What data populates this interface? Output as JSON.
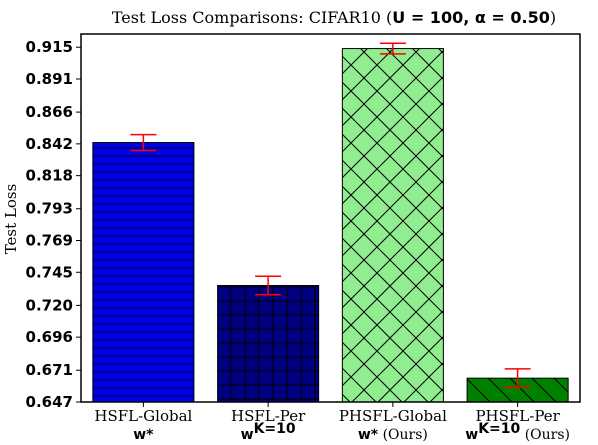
{
  "chart_data": {
    "type": "bar",
    "title": {
      "prefix": "Test Loss Comparisons: CIFAR10 (",
      "params": "U = 100, α = 0.50",
      "suffix": ")"
    },
    "ylabel": "Test Loss",
    "ylim": [
      0.647,
      0.925
    ],
    "yticks": [
      "0.915",
      "0.891",
      "0.866",
      "0.842",
      "0.818",
      "0.793",
      "0.769",
      "0.745",
      "0.720",
      "0.696",
      "0.671",
      "0.647"
    ],
    "categories": [
      {
        "label": "HSFL-Global",
        "sub": "w*",
        "sup": "",
        "suffix": ""
      },
      {
        "label": "HSFL-Per",
        "sub": "w",
        "sup": "K=10",
        "suffix": ""
      },
      {
        "label": "PHSFL-Global",
        "sub": "w*",
        "sup": "",
        "suffix": " (Ours)"
      },
      {
        "label": "PHSFL-Per",
        "sub": "w",
        "sup": "K=10",
        "suffix": " (Ours)"
      }
    ],
    "values": [
      0.843,
      0.735,
      0.914,
      0.665
    ],
    "errors": [
      0.006,
      0.007,
      0.004,
      0.007
    ],
    "colors": [
      "#0000ee",
      "#000080",
      "#90ee90",
      "#008000"
    ],
    "hatches": [
      "horizontal",
      "grid",
      "crosshatch",
      "backslash"
    ],
    "error_color": "#ff0000",
    "grid": false,
    "legend": "none"
  }
}
